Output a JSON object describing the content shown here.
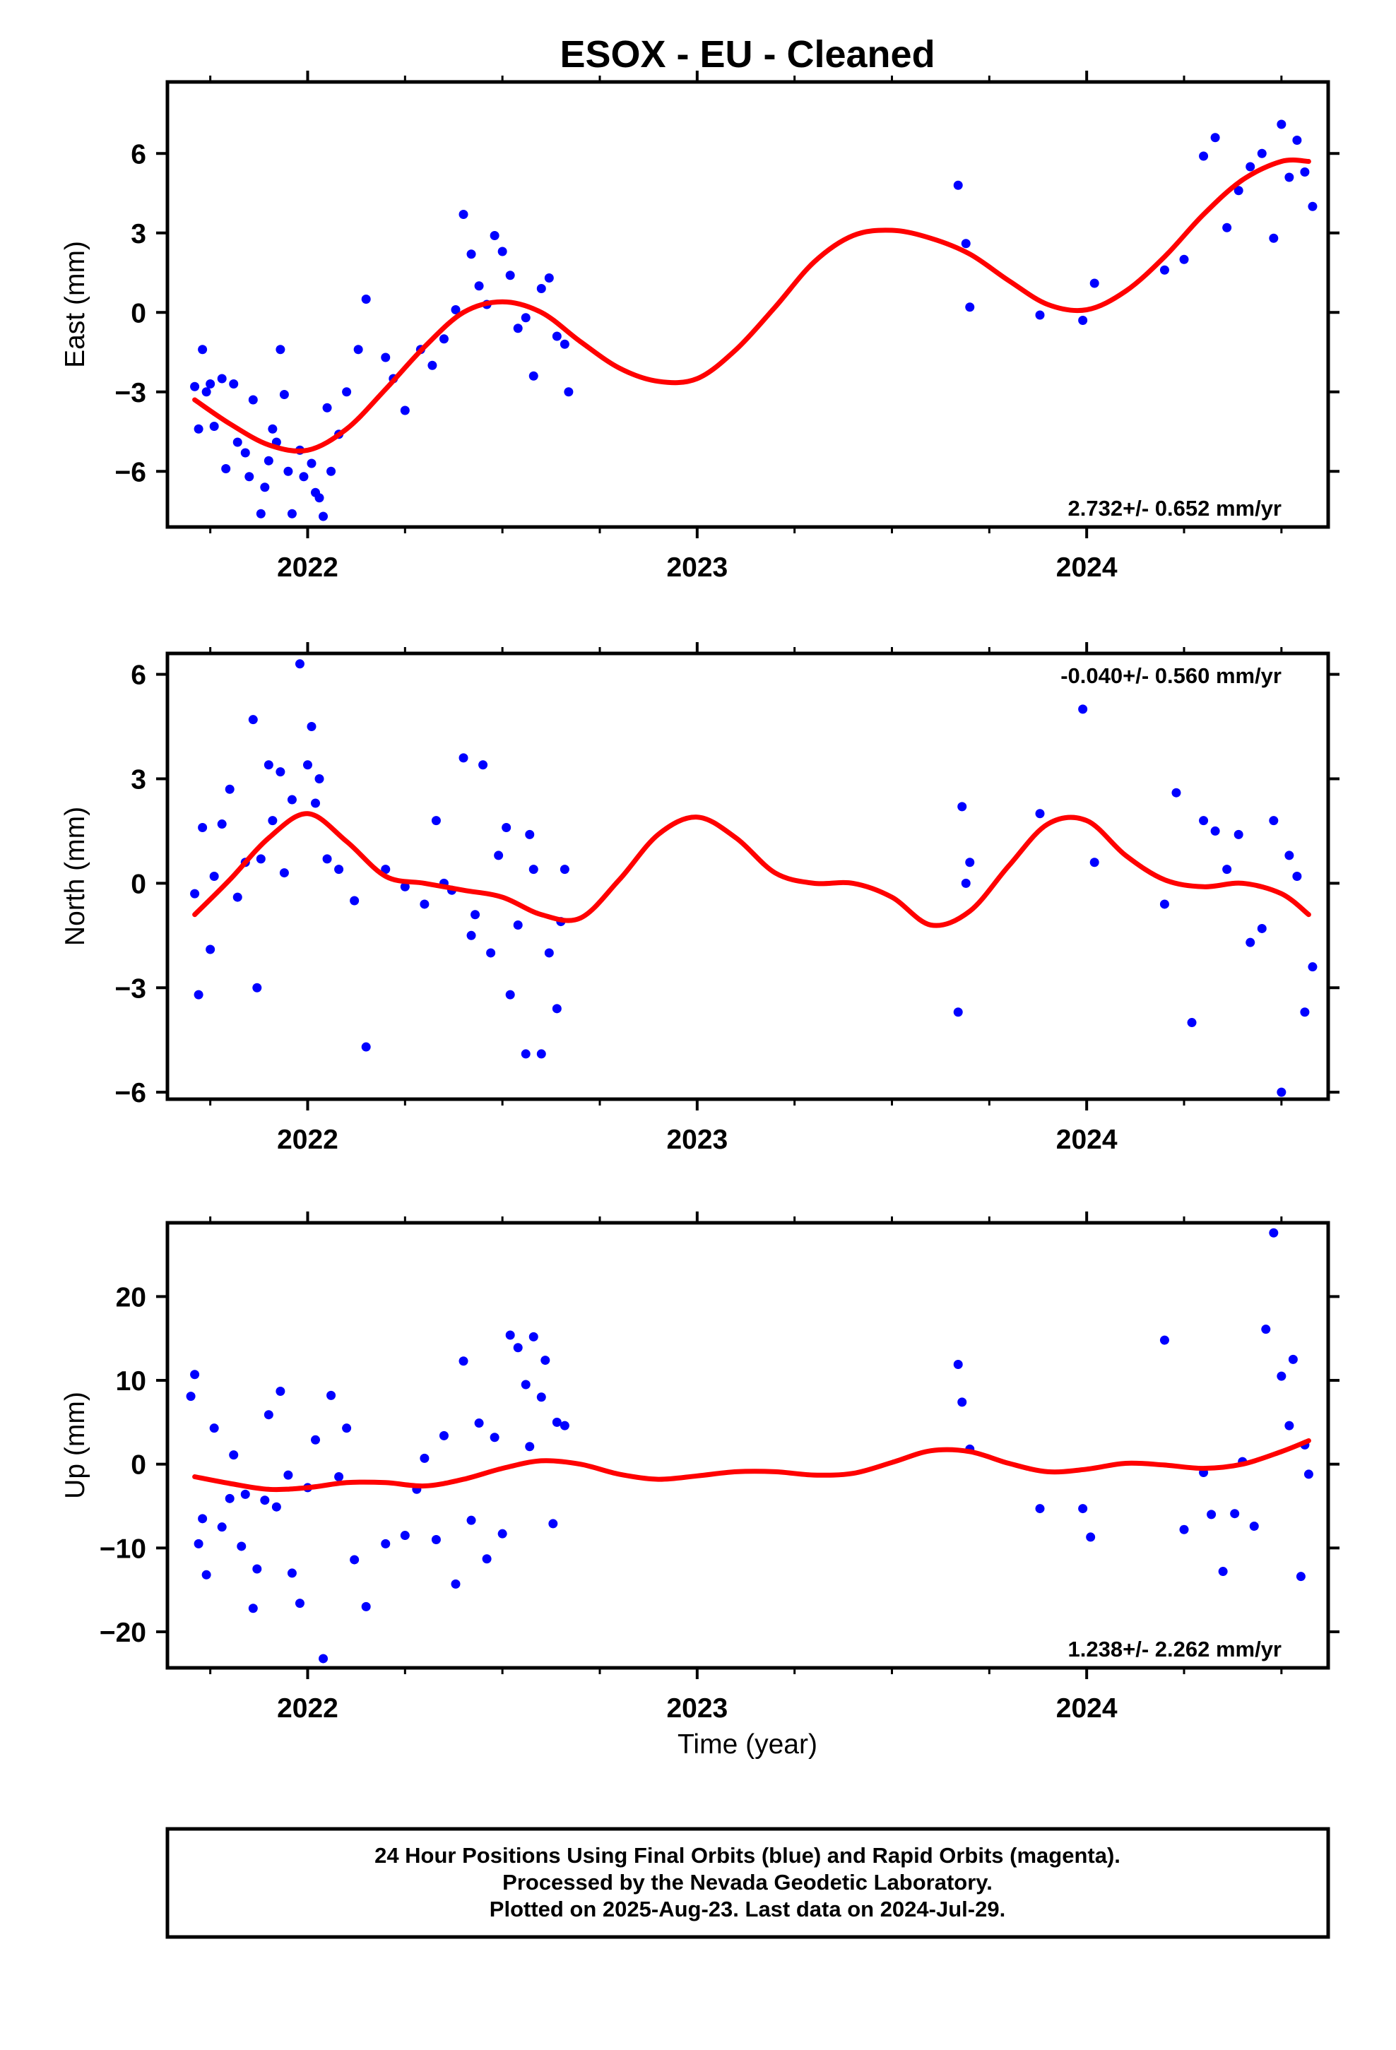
{
  "figure": {
    "title": "ESOX  - EU - Cleaned",
    "xlabel": "Time (year)",
    "footer": [
      "24 Hour Positions Using Final Orbits (blue) and Rapid Orbits (magenta).",
      "Processed by the Nevada Geodetic Laboratory.",
      "Plotted on 2025-Aug-23. Last data on 2024-Jul-29."
    ],
    "colors": {
      "points": "#0000ff",
      "fit": "#ff0000",
      "frame": "#000000"
    }
  },
  "chart_data": [
    {
      "type": "scatter",
      "title": "ESOX  - EU - Cleaned",
      "ylabel": "East (mm)",
      "xlim": [
        2021.64,
        2024.62
      ],
      "ylim": [
        -8.1,
        8.7
      ],
      "x_ticks": [
        2022,
        2023,
        2024
      ],
      "x_tick_labels": [
        "2022",
        "2023",
        "2024"
      ],
      "y_ticks": [
        -6,
        -3,
        0,
        3,
        6
      ],
      "y_tick_labels": [
        "−6",
        "−3",
        "0",
        "3",
        "6"
      ],
      "rate_label": "2.732+/- 0.652 mm/yr",
      "rate_position": "bottom-right",
      "fit": {
        "name": "",
        "x": [
          2021.71,
          2021.8,
          2021.9,
          2022.0,
          2022.1,
          2022.2,
          2022.3,
          2022.4,
          2022.5,
          2022.6,
          2022.7,
          2022.8,
          2022.9,
          2023.0,
          2023.1,
          2023.2,
          2023.3,
          2023.4,
          2023.5,
          2023.6,
          2023.7,
          2023.8,
          2023.9,
          2024.0,
          2024.1,
          2024.2,
          2024.3,
          2024.4,
          2024.5,
          2024.57
        ],
        "y": [
          -3.3,
          -4.2,
          -5.0,
          -5.2,
          -4.4,
          -2.9,
          -1.3,
          0.0,
          0.4,
          0.0,
          -1.1,
          -2.1,
          -2.6,
          -2.5,
          -1.4,
          0.2,
          1.9,
          2.9,
          3.1,
          2.8,
          2.2,
          1.2,
          0.3,
          0.1,
          0.8,
          2.1,
          3.7,
          5.0,
          5.7,
          5.7
        ]
      },
      "series": [
        {
          "name": "",
          "x": [
            2021.71,
            2021.72,
            2021.73,
            2021.74,
            2021.75,
            2021.76,
            2021.78,
            2021.79,
            2021.81,
            2021.82,
            2021.84,
            2021.85,
            2021.86,
            2021.88,
            2021.89,
            2021.9,
            2021.91,
            2021.92,
            2021.93,
            2021.94,
            2021.95,
            2021.96,
            2021.98,
            2021.99,
            2022.01,
            2022.02,
            2022.03,
            2022.04,
            2022.05,
            2022.06,
            2022.08,
            2022.1,
            2022.13,
            2022.15,
            2022.2,
            2022.22,
            2022.25,
            2022.29,
            2022.32,
            2022.35,
            2022.38,
            2022.4,
            2022.42,
            2022.44,
            2022.46,
            2022.48,
            2022.5,
            2022.52,
            2022.54,
            2022.56,
            2022.58,
            2022.6,
            2022.62,
            2022.64,
            2022.66,
            2022.67,
            2023.67,
            2023.69,
            2023.7,
            2023.88,
            2023.99,
            2024.02,
            2024.2,
            2024.25,
            2024.3,
            2024.33,
            2024.36,
            2024.39,
            2024.42,
            2024.45,
            2024.48,
            2024.5,
            2024.52,
            2024.54,
            2024.56,
            2024.58
          ],
          "y": [
            -2.8,
            -4.4,
            -1.4,
            -3.0,
            -2.7,
            -4.3,
            -2.5,
            -5.9,
            -2.7,
            -4.9,
            -5.3,
            -6.2,
            -3.3,
            -7.6,
            -6.6,
            -5.6,
            -4.4,
            -4.9,
            -1.4,
            -3.1,
            -6.0,
            -7.6,
            -5.2,
            -6.2,
            -5.7,
            -6.8,
            -7.0,
            -7.7,
            -3.6,
            -6.0,
            -4.6,
            -3.0,
            -1.4,
            0.5,
            -1.7,
            -2.5,
            -3.7,
            -1.4,
            -2.0,
            -1.0,
            0.1,
            3.7,
            2.2,
            1.0,
            0.3,
            2.9,
            2.3,
            1.4,
            -0.6,
            -0.2,
            -2.4,
            0.9,
            1.3,
            -0.9,
            -1.2,
            -3.0,
            4.8,
            2.6,
            0.2,
            -0.1,
            -0.3,
            1.1,
            1.6,
            2.0,
            5.9,
            6.6,
            3.2,
            4.6,
            5.5,
            6.0,
            2.8,
            7.1,
            5.1,
            6.5,
            5.3,
            4.0
          ]
        }
      ]
    },
    {
      "type": "scatter",
      "ylabel": "North (mm)",
      "xlim": [
        2021.64,
        2024.62
      ],
      "ylim": [
        -6.2,
        6.6
      ],
      "x_ticks": [
        2022,
        2023,
        2024
      ],
      "x_tick_labels": [
        "2022",
        "2023",
        "2024"
      ],
      "y_ticks": [
        -6,
        -3,
        0,
        3,
        6
      ],
      "y_tick_labels": [
        "−6",
        "−3",
        "0",
        "3",
        "6"
      ],
      "rate_label": "-0.040+/- 0.560 mm/yr",
      "rate_position": "top-right",
      "fit": {
        "name": "",
        "x": [
          2021.71,
          2021.8,
          2021.9,
          2022.0,
          2022.1,
          2022.2,
          2022.3,
          2022.4,
          2022.5,
          2022.6,
          2022.7,
          2022.8,
          2022.9,
          2023.0,
          2023.1,
          2023.2,
          2023.3,
          2023.4,
          2023.5,
          2023.6,
          2023.7,
          2023.8,
          2023.9,
          2024.0,
          2024.1,
          2024.2,
          2024.3,
          2024.4,
          2024.5,
          2024.57
        ],
        "y": [
          -0.9,
          0.1,
          1.3,
          2.0,
          1.2,
          0.2,
          0.0,
          -0.2,
          -0.4,
          -0.9,
          -1.0,
          0.1,
          1.4,
          1.9,
          1.3,
          0.3,
          0.0,
          0.0,
          -0.4,
          -1.2,
          -0.8,
          0.5,
          1.7,
          1.8,
          0.8,
          0.1,
          -0.1,
          0.0,
          -0.3,
          -0.9
        ]
      },
      "series": [
        {
          "name": "",
          "x": [
            2021.71,
            2021.72,
            2021.73,
            2021.75,
            2021.76,
            2021.78,
            2021.8,
            2021.82,
            2021.84,
            2021.86,
            2021.87,
            2021.88,
            2021.9,
            2021.91,
            2021.93,
            2021.94,
            2021.96,
            2021.98,
            2022.0,
            2022.01,
            2022.02,
            2022.03,
            2022.05,
            2022.08,
            2022.12,
            2022.15,
            2022.2,
            2022.25,
            2022.3,
            2022.33,
            2022.35,
            2022.37,
            2022.4,
            2022.42,
            2022.43,
            2022.45,
            2022.47,
            2022.49,
            2022.51,
            2022.52,
            2022.54,
            2022.56,
            2022.57,
            2022.58,
            2022.6,
            2022.62,
            2022.64,
            2022.65,
            2022.66,
            2023.67,
            2023.68,
            2023.69,
            2023.7,
            2023.88,
            2023.99,
            2024.02,
            2024.2,
            2024.23,
            2024.27,
            2024.3,
            2024.33,
            2024.36,
            2024.39,
            2024.42,
            2024.45,
            2024.48,
            2024.5,
            2024.52,
            2024.54,
            2024.56,
            2024.58
          ],
          "y": [
            -0.3,
            -3.2,
            1.6,
            -1.9,
            0.2,
            1.7,
            2.7,
            -0.4,
            0.6,
            4.7,
            -3.0,
            0.7,
            3.4,
            1.8,
            3.2,
            0.3,
            2.4,
            6.3,
            3.4,
            4.5,
            2.3,
            3.0,
            0.7,
            0.4,
            -0.5,
            -4.7,
            0.4,
            -0.1,
            -0.6,
            1.8,
            0.0,
            -0.2,
            3.6,
            -1.5,
            -0.9,
            3.4,
            -2.0,
            0.8,
            1.6,
            -3.2,
            -1.2,
            -4.9,
            1.4,
            0.4,
            -4.9,
            -2.0,
            -3.6,
            -1.1,
            0.4,
            -3.7,
            2.2,
            0.0,
            0.6,
            2.0,
            5.0,
            0.6,
            -0.6,
            2.6,
            -4.0,
            1.8,
            1.5,
            0.4,
            1.4,
            -1.7,
            -1.3,
            1.8,
            -6.0,
            0.8,
            0.2,
            -3.7,
            -2.4
          ]
        }
      ]
    },
    {
      "type": "scatter",
      "ylabel": "Up (mm)",
      "xlabel": "Time (year)",
      "xlim": [
        2021.64,
        2024.62
      ],
      "ylim": [
        -24.3,
        28.8
      ],
      "x_ticks": [
        2022,
        2023,
        2024
      ],
      "x_tick_labels": [
        "2022",
        "2023",
        "2024"
      ],
      "y_ticks": [
        -20,
        -10,
        0,
        10,
        20
      ],
      "y_tick_labels": [
        "−20",
        "−10",
        "0",
        "10",
        "20"
      ],
      "rate_label": "1.238+/- 2.262 mm/yr",
      "rate_position": "bottom-right",
      "fit": {
        "name": "",
        "x": [
          2021.71,
          2021.8,
          2021.9,
          2022.0,
          2022.1,
          2022.2,
          2022.3,
          2022.4,
          2022.5,
          2022.6,
          2022.7,
          2022.8,
          2022.9,
          2023.0,
          2023.1,
          2023.2,
          2023.3,
          2023.4,
          2023.5,
          2023.6,
          2023.7,
          2023.8,
          2023.9,
          2024.0,
          2024.1,
          2024.2,
          2024.3,
          2024.4,
          2024.5,
          2024.57
        ],
        "y": [
          -1.5,
          -2.3,
          -3.0,
          -2.8,
          -2.2,
          -2.2,
          -2.6,
          -1.8,
          -0.5,
          0.4,
          0.0,
          -1.2,
          -1.8,
          -1.4,
          -0.9,
          -0.9,
          -1.3,
          -1.1,
          0.2,
          1.6,
          1.5,
          0.1,
          -0.9,
          -0.6,
          0.1,
          -0.1,
          -0.5,
          0.0,
          1.5,
          2.8
        ]
      },
      "series": [
        {
          "name": "",
          "x": [
            2021.7,
            2021.71,
            2021.72,
            2021.73,
            2021.74,
            2021.76,
            2021.78,
            2021.8,
            2021.81,
            2021.83,
            2021.84,
            2021.86,
            2021.87,
            2021.89,
            2021.9,
            2021.92,
            2021.93,
            2021.95,
            2021.96,
            2021.98,
            2022.0,
            2022.02,
            2022.04,
            2022.06,
            2022.08,
            2022.1,
            2022.12,
            2022.15,
            2022.2,
            2022.25,
            2022.28,
            2022.3,
            2022.33,
            2022.35,
            2022.38,
            2022.4,
            2022.42,
            2022.44,
            2022.46,
            2022.48,
            2022.5,
            2022.52,
            2022.54,
            2022.56,
            2022.57,
            2022.58,
            2022.6,
            2022.61,
            2022.63,
            2022.64,
            2022.66,
            2023.67,
            2023.68,
            2023.7,
            2023.88,
            2023.99,
            2024.01,
            2024.2,
            2024.25,
            2024.3,
            2024.32,
            2024.35,
            2024.38,
            2024.4,
            2024.43,
            2024.46,
            2024.48,
            2024.5,
            2024.52,
            2024.53,
            2024.55,
            2024.56,
            2024.57
          ],
          "y": [
            8.1,
            10.7,
            -9.5,
            -6.5,
            -13.2,
            4.3,
            -7.5,
            -4.1,
            1.1,
            -9.8,
            -3.6,
            -17.2,
            -12.5,
            -4.3,
            5.9,
            -5.1,
            8.7,
            -1.3,
            -13.0,
            -16.6,
            -2.8,
            2.9,
            -23.2,
            8.2,
            -1.5,
            4.3,
            -11.4,
            -17.0,
            -9.5,
            -8.5,
            -3.0,
            0.7,
            -9.0,
            3.4,
            -14.3,
            12.3,
            -6.7,
            4.9,
            -11.3,
            3.2,
            -8.3,
            15.4,
            13.9,
            9.5,
            2.1,
            15.2,
            8.0,
            12.4,
            -7.1,
            5.0,
            4.6,
            11.9,
            7.4,
            1.8,
            -5.3,
            -5.3,
            -8.7,
            14.8,
            -7.8,
            -1.0,
            -6.0,
            -12.8,
            -5.9,
            0.3,
            -7.4,
            16.1,
            27.6,
            10.5,
            4.6,
            12.5,
            -13.4,
            2.3,
            -1.2
          ]
        }
      ]
    }
  ]
}
